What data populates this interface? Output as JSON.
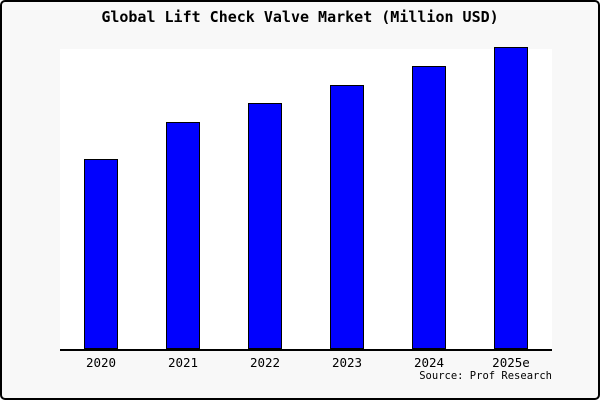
{
  "chart_data": {
    "type": "bar",
    "title": "Global Lift Check Valve Market (Million USD)",
    "categories": [
      "2020",
      "2021",
      "2022",
      "2023",
      "2024",
      "2025e"
    ],
    "values": [
      62.8,
      75.1,
      81.4,
      87.4,
      93.7,
      100
    ],
    "values_note": "No y-axis scale shown in the chart; values are bar heights as percent of the tallest bar (2025e = 100)",
    "xlabel": "",
    "ylabel": "",
    "ylim": [
      0,
      100
    ],
    "grid": false,
    "legend": false,
    "bar_fill": "#0101FE",
    "bar_border": "#000000",
    "plot_background": "#ffffff",
    "figure_background": "#f8f8f8",
    "source": "Source: Prof Research"
  }
}
